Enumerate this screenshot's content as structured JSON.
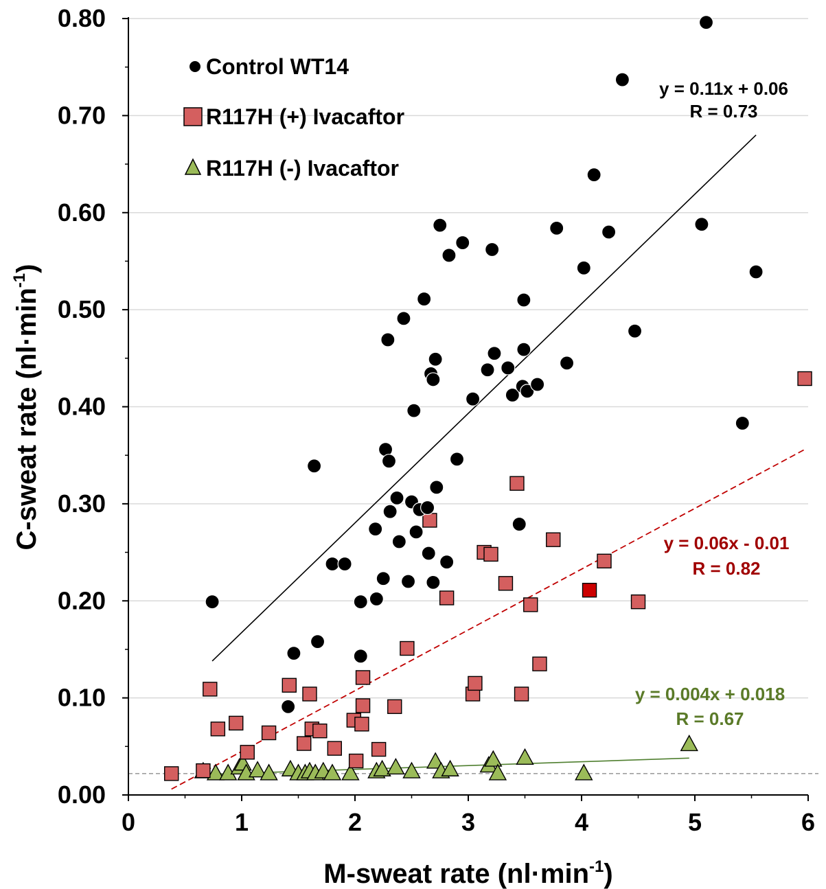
{
  "chart_data": {
    "type": "scatter",
    "title": "",
    "xlabel": "M-sweat rate (nl·min",
    "xlabel_sup": "-1",
    "xlabel_close": ")",
    "ylabel": "C-sweat rate (nl·min",
    "ylabel_sup": "-1",
    "ylabel_close": ")",
    "xlim": [
      0,
      6
    ],
    "ylim": [
      0,
      0.8
    ],
    "x_ticks": [
      "0",
      "1",
      "2",
      "3",
      "4",
      "5",
      "6"
    ],
    "y_ticks": [
      "0.00",
      "0.10",
      "0.20",
      "0.30",
      "0.40",
      "0.50",
      "0.60",
      "0.70",
      "0.80"
    ],
    "grid": "horizontal",
    "legend_position": "top-left",
    "reference_line_y": 0.022,
    "series": [
      {
        "name": "Control WT14",
        "marker": "circle",
        "color": "#000000",
        "points": [
          [
            0.74,
            0.199
          ],
          [
            1.41,
            0.091
          ],
          [
            1.46,
            0.146
          ],
          [
            1.64,
            0.339
          ],
          [
            1.67,
            0.158
          ],
          [
            1.8,
            0.238
          ],
          [
            1.91,
            0.238
          ],
          [
            2.05,
            0.143
          ],
          [
            2.05,
            0.199
          ],
          [
            2.18,
            0.274
          ],
          [
            2.19,
            0.202
          ],
          [
            2.25,
            0.223
          ],
          [
            2.27,
            0.356
          ],
          [
            2.29,
            0.469
          ],
          [
            2.3,
            0.344
          ],
          [
            2.31,
            0.292
          ],
          [
            2.37,
            0.306
          ],
          [
            2.39,
            0.261
          ],
          [
            2.43,
            0.491
          ],
          [
            2.47,
            0.22
          ],
          [
            2.5,
            0.302
          ],
          [
            2.52,
            0.396
          ],
          [
            2.54,
            0.271
          ],
          [
            2.57,
            0.294
          ],
          [
            2.61,
            0.511
          ],
          [
            2.64,
            0.296
          ],
          [
            2.65,
            0.249
          ],
          [
            2.67,
            0.434
          ],
          [
            2.69,
            0.428
          ],
          [
            2.69,
            0.219
          ],
          [
            2.71,
            0.449
          ],
          [
            2.72,
            0.317
          ],
          [
            2.75,
            0.587
          ],
          [
            2.81,
            0.24
          ],
          [
            2.83,
            0.556
          ],
          [
            2.9,
            0.346
          ],
          [
            2.95,
            0.569
          ],
          [
            3.04,
            0.408
          ],
          [
            3.17,
            0.438
          ],
          [
            3.21,
            0.562
          ],
          [
            3.23,
            0.455
          ],
          [
            3.35,
            0.44
          ],
          [
            3.39,
            0.412
          ],
          [
            3.45,
            0.279
          ],
          [
            3.48,
            0.421
          ],
          [
            3.49,
            0.51
          ],
          [
            3.49,
            0.459
          ],
          [
            3.52,
            0.416
          ],
          [
            3.61,
            0.423
          ],
          [
            3.78,
            0.584
          ],
          [
            3.87,
            0.445
          ],
          [
            4.02,
            0.543
          ],
          [
            4.11,
            0.639
          ],
          [
            4.24,
            0.58
          ],
          [
            4.36,
            0.737
          ],
          [
            4.47,
            0.478
          ],
          [
            5.06,
            0.588
          ],
          [
            5.1,
            0.796
          ],
          [
            5.42,
            0.383
          ],
          [
            5.54,
            0.539
          ]
        ],
        "trend": {
          "x": [
            0.74,
            5.54
          ],
          "y": [
            0.138,
            0.68
          ]
        },
        "equation": "y = 0.11x + 0.06",
        "r_label": "R = 0.73"
      },
      {
        "name": "R117H (+) Ivacaftor",
        "marker": "square",
        "color": "#d45f5f",
        "highlight_color": "#cc0000",
        "points": [
          [
            0.38,
            0.022
          ],
          [
            0.66,
            0.025
          ],
          [
            0.72,
            0.109
          ],
          [
            0.79,
            0.068
          ],
          [
            0.95,
            0.074
          ],
          [
            1.05,
            0.044
          ],
          [
            1.24,
            0.064
          ],
          [
            1.42,
            0.113
          ],
          [
            1.55,
            0.053
          ],
          [
            1.6,
            0.104
          ],
          [
            1.62,
            0.068
          ],
          [
            1.69,
            0.066
          ],
          [
            1.82,
            0.048
          ],
          [
            1.99,
            0.077
          ],
          [
            2.01,
            0.035
          ],
          [
            2.06,
            0.073
          ],
          [
            2.07,
            0.092
          ],
          [
            2.07,
            0.121
          ],
          [
            2.21,
            0.047
          ],
          [
            2.35,
            0.091
          ],
          [
            2.46,
            0.151
          ],
          [
            2.66,
            0.283
          ],
          [
            2.81,
            0.203
          ],
          [
            3.04,
            0.104
          ],
          [
            3.06,
            0.115
          ],
          [
            3.14,
            0.25
          ],
          [
            3.2,
            0.248
          ],
          [
            3.33,
            0.218
          ],
          [
            3.43,
            0.321
          ],
          [
            3.47,
            0.104
          ],
          [
            3.55,
            0.196
          ],
          [
            3.63,
            0.135
          ],
          [
            3.75,
            0.263
          ],
          [
            4.07,
            0.211
          ],
          [
            4.2,
            0.241
          ],
          [
            4.5,
            0.199
          ],
          [
            5.97,
            0.429
          ]
        ],
        "highlight_points": [
          [
            4.07,
            0.211
          ]
        ],
        "trend": {
          "x": [
            0.38,
            5.97
          ],
          "y": [
            0.006,
            0.356
          ]
        },
        "equation": "y = 0.06x - 0.01",
        "r_label": "R = 0.82"
      },
      {
        "name": "R117H (-) Ivacaftor",
        "marker": "triangle",
        "color": "#9bbb59",
        "points": [
          [
            0.66,
            0.024
          ],
          [
            0.77,
            0.022
          ],
          [
            0.88,
            0.022
          ],
          [
            0.98,
            0.028
          ],
          [
            1.01,
            0.032
          ],
          [
            1.04,
            0.022
          ],
          [
            1.14,
            0.025
          ],
          [
            1.24,
            0.022
          ],
          [
            1.43,
            0.026
          ],
          [
            1.5,
            0.022
          ],
          [
            1.56,
            0.022
          ],
          [
            1.6,
            0.024
          ],
          [
            1.65,
            0.022
          ],
          [
            1.72,
            0.024
          ],
          [
            1.8,
            0.022
          ],
          [
            1.96,
            0.022
          ],
          [
            2.19,
            0.024
          ],
          [
            2.24,
            0.026
          ],
          [
            2.36,
            0.028
          ],
          [
            2.5,
            0.024
          ],
          [
            2.71,
            0.034
          ],
          [
            2.76,
            0.024
          ],
          [
            2.84,
            0.026
          ],
          [
            3.18,
            0.03
          ],
          [
            3.22,
            0.036
          ],
          [
            3.26,
            0.022
          ],
          [
            3.5,
            0.038
          ],
          [
            4.02,
            0.022
          ],
          [
            4.95,
            0.052
          ]
        ],
        "trend": {
          "x": [
            0.66,
            4.95
          ],
          "y": [
            0.021,
            0.038
          ]
        },
        "equation": "y = 0.004x + 0.018",
        "r_label": "R = 0.67"
      }
    ]
  },
  "colors": {
    "control_line": "#000000",
    "plus_line": "#c00000",
    "plus_text": "#a00000",
    "minus_line": "#4f7f2f",
    "minus_text": "#5a7a28",
    "grid": "#d9d9d9",
    "reference": "#808080"
  }
}
